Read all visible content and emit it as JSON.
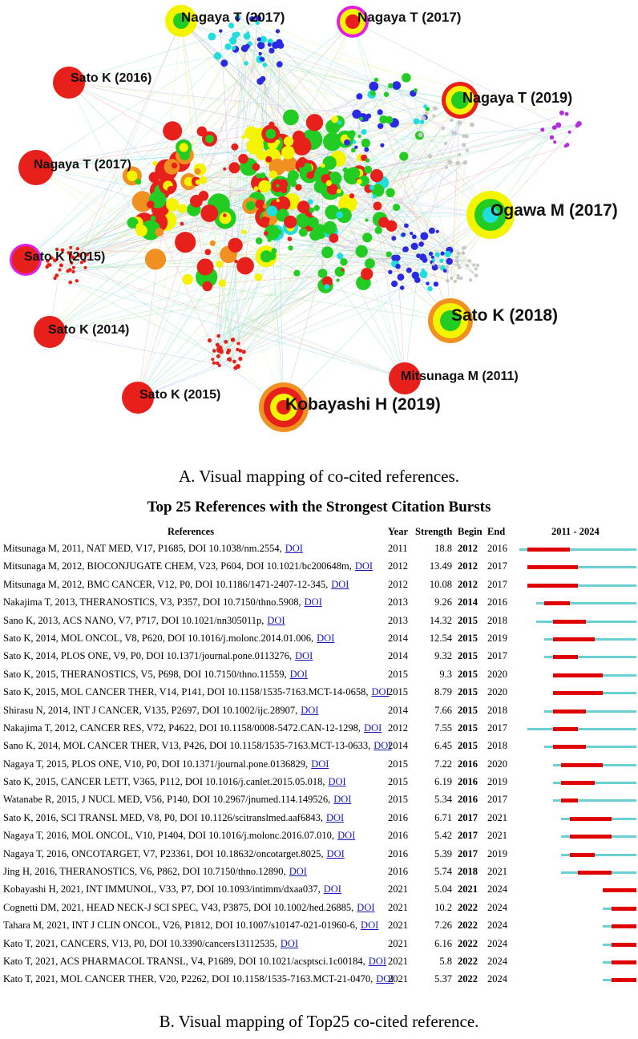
{
  "panel_a": {
    "caption": "A. Visual mapping of co-cited references.",
    "labels": [
      {
        "id": "n1",
        "text": "Nagaya T (2017)"
      },
      {
        "id": "n2",
        "text": "Nagaya T (2017)"
      },
      {
        "id": "n3",
        "text": "Sato K (2016)"
      },
      {
        "id": "n4",
        "text": "Nagaya T (2019)"
      },
      {
        "id": "n5",
        "text": "Nagaya T (2017)"
      },
      {
        "id": "n6",
        "text": "Ogawa M (2017)"
      },
      {
        "id": "n7",
        "text": "Sato K (2015)"
      },
      {
        "id": "n8",
        "text": "Sato K (2018)"
      },
      {
        "id": "n9",
        "text": "Sato K (2014)"
      },
      {
        "id": "n10",
        "text": "Mitsunaga M (2011)"
      },
      {
        "id": "n11",
        "text": "Sato K (2015)"
      },
      {
        "id": "n12",
        "text": "Kobayashi H (2019)"
      }
    ],
    "colors": {
      "red": "#e8201c",
      "yellow": "#f4f400",
      "green": "#22cc22",
      "cyan": "#22dddd",
      "blue": "#2a2ae0",
      "purple": "#b030e0",
      "magenta": "#e020e0",
      "orange": "#f09020",
      "gray": "#c8c8c8"
    }
  },
  "panel_b": {
    "title": "Top 25 References with the Strongest Citation Bursts",
    "caption": "B. Visual mapping of Top25 co-cited reference.",
    "headers": {
      "references": "References",
      "year": "Year",
      "strength": "Strength",
      "begin": "Begin",
      "end": "End",
      "range": "2011 - 2024"
    },
    "range": [
      2011,
      2024
    ],
    "rows": [
      {
        "ref": "Mitsunaga M, 2011, NAT MED, V17, P1685, DOI 10.1038/nm.2554,",
        "doi": "DOI",
        "year": "2011",
        "strength": "18.8",
        "begin": "2012",
        "end": "2016"
      },
      {
        "ref": "Mitsunaga M, 2012, BIOCONJUGATE CHEM, V23, P604, DOI 10.1021/bc200648m,",
        "doi": "DOI",
        "year": "2012",
        "strength": "13.49",
        "begin": "2012",
        "end": "2017"
      },
      {
        "ref": "Mitsunaga M, 2012, BMC CANCER, V12, P0, DOI 10.1186/1471-2407-12-345,",
        "doi": "DOI",
        "year": "2012",
        "strength": "10.08",
        "begin": "2012",
        "end": "2017"
      },
      {
        "ref": "Nakajima T, 2013, THERANOSTICS, V3, P357, DOI 10.7150/thno.5908,",
        "doi": "DOI",
        "year": "2013",
        "strength": "9.26",
        "begin": "2014",
        "end": "2016"
      },
      {
        "ref": "Sano K, 2013, ACS NANO, V7, P717, DOI 10.1021/nn305011p,",
        "doi": "DOI",
        "year": "2013",
        "strength": "14.32",
        "begin": "2015",
        "end": "2018"
      },
      {
        "ref": "Sato K, 2014, MOL ONCOL, V8, P620, DOI 10.1016/j.molonc.2014.01.006,",
        "doi": "DOI",
        "year": "2014",
        "strength": "12.54",
        "begin": "2015",
        "end": "2019"
      },
      {
        "ref": "Sato K, 2014, PLOS ONE, V9, P0, DOI 10.1371/journal.pone.0113276,",
        "doi": "DOI",
        "year": "2014",
        "strength": "9.32",
        "begin": "2015",
        "end": "2017"
      },
      {
        "ref": "Sato K, 2015, THERANOSTICS, V5, P698, DOI 10.7150/thno.11559,",
        "doi": "DOI",
        "year": "2015",
        "strength": "9.3",
        "begin": "2015",
        "end": "2020"
      },
      {
        "ref": "Sato K, 2015, MOL CANCER THER, V14, P141, DOI 10.1158/1535-7163.MCT-14-0658,",
        "doi": "DOI",
        "year": "2015",
        "strength": "8.79",
        "begin": "2015",
        "end": "2020"
      },
      {
        "ref": "Shirasu N, 2014, INT J CANCER, V135, P2697, DOI 10.1002/ijc.28907,",
        "doi": "DOI",
        "year": "2014",
        "strength": "7.66",
        "begin": "2015",
        "end": "2018"
      },
      {
        "ref": "Nakajima T, 2012, CANCER RES, V72, P4622, DOI 10.1158/0008-5472.CAN-12-1298,",
        "doi": "DOI",
        "year": "2012",
        "strength": "7.55",
        "begin": "2015",
        "end": "2017"
      },
      {
        "ref": "Sano K, 2014, MOL CANCER THER, V13, P426, DOI 10.1158/1535-7163.MCT-13-0633,",
        "doi": "DOI",
        "year": "2014",
        "strength": "6.45",
        "begin": "2015",
        "end": "2018"
      },
      {
        "ref": "Nagaya T, 2015, PLOS ONE, V10, P0, DOI 10.1371/journal.pone.0136829,",
        "doi": "DOI",
        "year": "2015",
        "strength": "7.22",
        "begin": "2016",
        "end": "2020"
      },
      {
        "ref": "Sato K, 2015, CANCER LETT, V365, P112, DOI 10.1016/j.canlet.2015.05.018,",
        "doi": "DOI",
        "year": "2015",
        "strength": "6.19",
        "begin": "2016",
        "end": "2019"
      },
      {
        "ref": "Watanabe R, 2015, J NUCL MED, V56, P140, DOI 10.2967/jnumed.114.149526,",
        "doi": "DOI",
        "year": "2015",
        "strength": "5.34",
        "begin": "2016",
        "end": "2017"
      },
      {
        "ref": "Sato K, 2016, SCI TRANSL MED, V8, P0, DOI 10.1126/scitranslmed.aaf6843,",
        "doi": "DOI",
        "year": "2016",
        "strength": "6.71",
        "begin": "2017",
        "end": "2021"
      },
      {
        "ref": "Nagaya T, 2016, MOL ONCOL, V10, P1404, DOI 10.1016/j.molonc.2016.07.010,",
        "doi": "DOI",
        "year": "2016",
        "strength": "5.42",
        "begin": "2017",
        "end": "2021"
      },
      {
        "ref": "Nagaya T, 2016, ONCOTARGET, V7, P23361, DOI 10.18632/oncotarget.8025,",
        "doi": "DOI",
        "year": "2016",
        "strength": "5.39",
        "begin": "2017",
        "end": "2019"
      },
      {
        "ref": "Jing H, 2016, THERANOSTICS, V6, P862, DOI 10.7150/thno.12890,",
        "doi": "DOI",
        "year": "2016",
        "strength": "5.74",
        "begin": "2018",
        "end": "2021"
      },
      {
        "ref": "Kobayashi H, 2021, INT IMMUNOL, V33, P7, DOI 10.1093/intimm/dxaa037,",
        "doi": "DOI",
        "year": "2021",
        "strength": "5.04",
        "begin": "2021",
        "end": "2024"
      },
      {
        "ref": "Cognetti DM, 2021, HEAD NECK-J SCI SPEC, V43, P3875, DOI 10.1002/hed.26885,",
        "doi": "DOI",
        "year": "2021",
        "strength": "10.2",
        "begin": "2022",
        "end": "2024"
      },
      {
        "ref": "Tahara M, 2021, INT J CLIN ONCOL, V26, P1812, DOI 10.1007/s10147-021-01960-6,",
        "doi": "DOI",
        "year": "2021",
        "strength": "7.26",
        "begin": "2022",
        "end": "2024"
      },
      {
        "ref": "Kato T, 2021, CANCERS, V13, P0, DOI 10.3390/cancers13112535,",
        "doi": "DOI",
        "year": "2021",
        "strength": "6.16",
        "begin": "2022",
        "end": "2024"
      },
      {
        "ref": "Kato T, 2021, ACS PHARMACOL TRANSL, V4, P1689, DOI 10.1021/acsptsci.1c00184,",
        "doi": "DOI",
        "year": "2021",
        "strength": "5.8",
        "begin": "2022",
        "end": "2024"
      },
      {
        "ref": "Kato T, 2021, MOL CANCER THER, V20, P2262, DOI 10.1158/1535-7163.MCT-21-0470,",
        "doi": "DOI",
        "year": "2021",
        "strength": "5.37",
        "begin": "2022",
        "end": "2024"
      }
    ]
  }
}
